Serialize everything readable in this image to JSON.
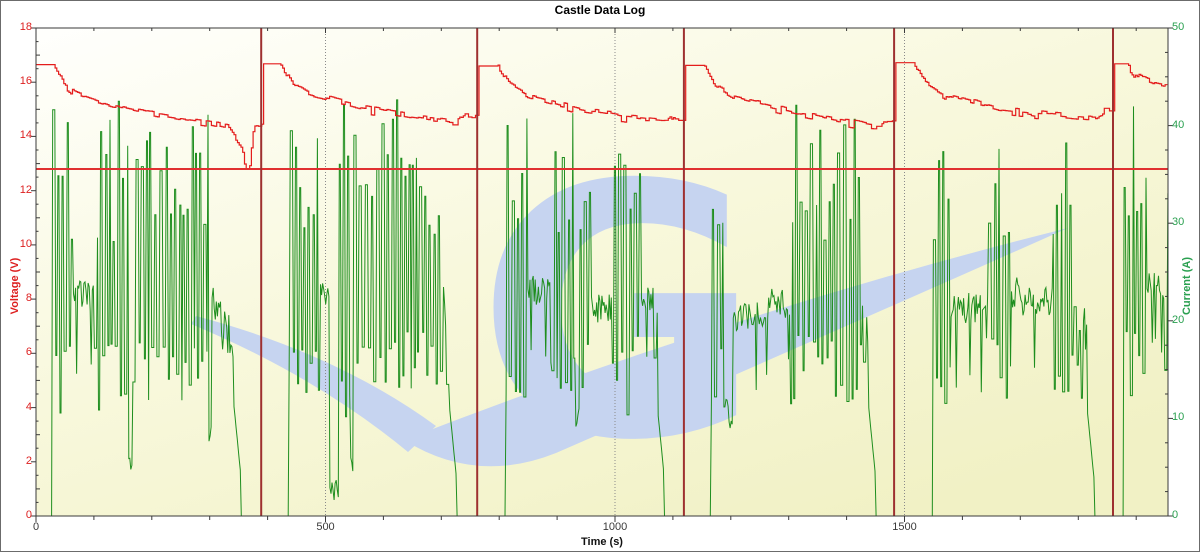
{
  "window": {
    "title": "Castle Data Log"
  },
  "chart_data": {
    "type": "line",
    "title": "Castle Data Log",
    "xlabel": "Time (s)",
    "x_axis": {
      "min": 0,
      "max": 1955,
      "major_tick_labels": [
        0,
        500,
        1000,
        1500
      ],
      "minor_step": 100,
      "gridlines": [
        500,
        1000,
        1500
      ],
      "label": "Time (s)",
      "label_color": "#111111",
      "tick_label_color": "#3a3a3a"
    },
    "left_axis": {
      "label": "Voltage (V)",
      "min": 0,
      "max": 18,
      "major_step": 2,
      "minor_step": 0.5,
      "color": "#dd2020"
    },
    "right_axis": {
      "label": "Current (A)",
      "min": 0,
      "max": 50,
      "major_step": 10,
      "minor_step": 2.5,
      "color": "#2aa050"
    },
    "cutoff_voltage": 12.8,
    "cutoff_color": "#e03030",
    "cycle_end_markers": [
      389,
      762,
      1119,
      1482,
      1860
    ],
    "marker_color": "#9e3030",
    "gridline_color": "#8a8a8a",
    "plot_bg": [
      "#fffffd",
      "#f8f8dc",
      "#f1f1c5"
    ],
    "watermark": {
      "letter": "G",
      "color": "#c6d4f0"
    },
    "series": [
      {
        "name": "Voltage",
        "unit": "V",
        "axis": "left",
        "color": "#e41c1c",
        "style": "step",
        "cycles": [
          {
            "keypoints": [
              [
                0,
                16.65
              ],
              [
                30,
                16.65
              ],
              [
                48,
                15.95
              ],
              [
                70,
                15.55
              ],
              [
                130,
                15.15
              ],
              [
                210,
                14.8
              ],
              [
                300,
                14.5
              ],
              [
                330,
                14.35
              ],
              [
                352,
                13.7
              ],
              [
                364,
                12.95
              ],
              [
                368,
                12.78
              ],
              [
                371,
                13.4
              ],
              [
                376,
                14.4
              ],
              [
                389,
                14.45
              ]
            ]
          },
          {
            "keypoints": [
              [
                392,
                16.68
              ],
              [
                422,
                16.68
              ],
              [
                442,
                15.95
              ],
              [
                470,
                15.6
              ],
              [
                560,
                15.1
              ],
              [
                650,
                14.75
              ],
              [
                715,
                14.55
              ],
              [
                728,
                14.55
              ],
              [
                740,
                14.78
              ],
              [
                762,
                14.78
              ]
            ]
          },
          {
            "keypoints": [
              [
                765,
                16.6
              ],
              [
                797,
                16.6
              ],
              [
                818,
                15.9
              ],
              [
                850,
                15.5
              ],
              [
                940,
                15.0
              ],
              [
                1030,
                14.7
              ],
              [
                1080,
                14.6
              ],
              [
                1090,
                14.6
              ],
              [
                1102,
                14.82
              ],
              [
                1119,
                14.82
              ]
            ]
          },
          {
            "keypoints": [
              [
                1122,
                16.62
              ],
              [
                1152,
                16.62
              ],
              [
                1172,
                15.85
              ],
              [
                1205,
                15.45
              ],
              [
                1300,
                14.95
              ],
              [
                1390,
                14.6
              ],
              [
                1445,
                14.4
              ],
              [
                1458,
                14.4
              ],
              [
                1468,
                14.62
              ],
              [
                1482,
                14.62
              ]
            ]
          },
          {
            "keypoints": [
              [
                1485,
                16.72
              ],
              [
                1516,
                16.72
              ],
              [
                1536,
                15.95
              ],
              [
                1570,
                15.55
              ],
              [
                1660,
                15.05
              ],
              [
                1760,
                14.8
              ],
              [
                1820,
                14.68
              ],
              [
                1832,
                14.68
              ],
              [
                1845,
                14.95
              ],
              [
                1860,
                14.95
              ]
            ]
          },
          {
            "keypoints": [
              [
                1863,
                16.68
              ],
              [
                1886,
                16.68
              ],
              [
                1900,
                16.3
              ],
              [
                1916,
                16.1
              ],
              [
                1934,
                15.95
              ],
              [
                1955,
                15.85
              ]
            ]
          }
        ]
      },
      {
        "name": "Current",
        "unit": "A",
        "axis": "right",
        "color": "#1e8e1e",
        "style": "line",
        "cycles": [
          {
            "on": 28,
            "off": 354,
            "base": 21.5,
            "peak": 43,
            "taper_start": 300
          },
          {
            "on": 437,
            "off": 726,
            "base": 22.0,
            "peak": 43,
            "taper_start": 700
          },
          {
            "on": 810,
            "off": 1085,
            "base": 22.0,
            "peak": 42,
            "taper_start": 1058
          },
          {
            "on": 1165,
            "off": 1450,
            "base": 21.5,
            "peak": 43,
            "taper_start": 1422
          },
          {
            "on": 1548,
            "off": 1827,
            "base": 21.5,
            "peak": 42,
            "taper_start": 1792
          },
          {
            "on": 1878,
            "off": 1955,
            "base": 22.0,
            "peak": 43,
            "taper_start": 1956
          }
        ]
      }
    ]
  }
}
